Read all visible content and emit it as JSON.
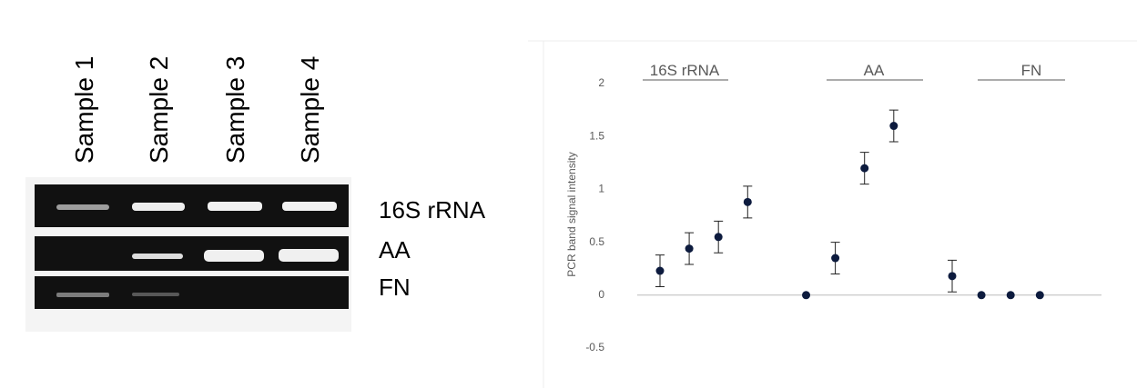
{
  "gel": {
    "samples": [
      "Sample 1",
      "Sample 2",
      "Sample 3",
      "Sample 4"
    ],
    "rows": [
      "16S rRNA",
      "AA",
      "FN"
    ]
  },
  "chart_data": {
    "type": "scatter",
    "ylabel": "PCR band signal intensity",
    "groups": [
      "16S rRNA",
      "AA",
      "FN"
    ],
    "categories": [
      null,
      null,
      null,
      null,
      null,
      null,
      null,
      null,
      null,
      null,
      null,
      null,
      null,
      null
    ],
    "values": [
      0.23,
      0.44,
      0.55,
      0.88,
      null,
      0,
      0.35,
      1.2,
      1.6,
      null,
      0.18,
      0,
      0,
      0
    ],
    "errors": [
      0.15,
      0.15,
      0.15,
      0.15,
      null,
      0,
      0.15,
      0.15,
      0.15,
      null,
      0.15,
      0,
      0,
      0
    ],
    "color": "#0d1b3e",
    "ylim": [
      -0.5,
      2
    ],
    "yticks": [
      -0.5,
      0,
      0.5,
      1,
      1.5,
      2
    ]
  }
}
